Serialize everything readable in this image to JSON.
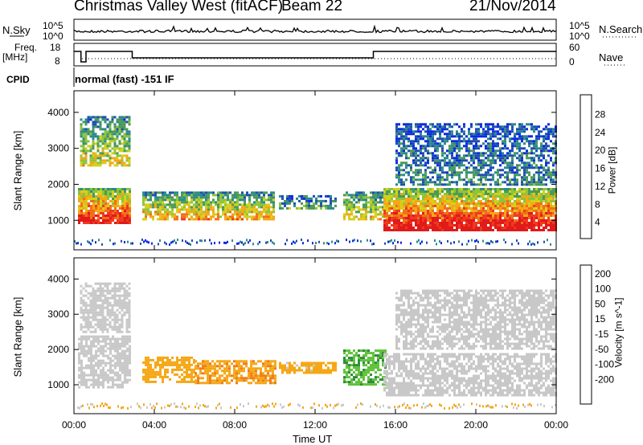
{
  "header": {
    "station": "Christmas Valley West (fitACF)",
    "beam": "Beam 22",
    "date": "21/Nov/2014"
  },
  "top_panels": {
    "nsky_label": "N.Sky",
    "nsearch_label": "N.Search",
    "nsky_ticks": [
      "10^5",
      "10^0"
    ],
    "nsearch_ticks": [
      "10^5",
      "10^0"
    ],
    "freq_label": "Freq.",
    "freq_unit": "[MHz]",
    "freq_ticks": [
      "18",
      "8"
    ],
    "nave_label": "Nave",
    "nave_ticks": [
      "60",
      "0"
    ],
    "cpid_label": "CPID",
    "cpid_text": "normal (fast) -151 IF"
  },
  "chart_data": [
    {
      "type": "heatmap",
      "title": "",
      "xlabel": "Time UT",
      "ylabel": "Slant Range [km]",
      "x_ticks": [
        "00:00",
        "04:00",
        "08:00",
        "12:00",
        "16:00",
        "20:00",
        "00:00"
      ],
      "y_ticks": [
        1000,
        2000,
        3000,
        4000
      ],
      "ylim": [
        180,
        4600
      ],
      "colorbar": {
        "label": "Power [dB]",
        "ticks": [
          "4",
          "8",
          "12",
          "16",
          "20",
          "24",
          "28"
        ],
        "colors": [
          "#0a2be0",
          "#1f4fb0",
          "#2c8a8a",
          "#4d9a55",
          "#8cc43b",
          "#d6d01a",
          "#f5a716",
          "#f0701a",
          "#ee3a1f",
          "#e11a1a"
        ]
      },
      "regions": [
        {
          "t": [
            0.2,
            2.8
          ],
          "r": [
            900,
            1900
          ],
          "level": 0.9
        },
        {
          "t": [
            0.3,
            2.8
          ],
          "r": [
            2500,
            3900
          ],
          "level": 0.5
        },
        {
          "t": [
            3.4,
            10.0
          ],
          "r": [
            1050,
            1800
          ],
          "level": 0.6
        },
        {
          "t": [
            10.2,
            13.0
          ],
          "r": [
            1350,
            1700
          ],
          "level": 0.3
        },
        {
          "t": [
            13.4,
            15.5
          ],
          "r": [
            1000,
            1800
          ],
          "level": 0.55
        },
        {
          "t": [
            15.4,
            24.0
          ],
          "r": [
            700,
            1900
          ],
          "level": 0.95
        },
        {
          "t": [
            16.0,
            24.0
          ],
          "r": [
            2000,
            3700
          ],
          "level": 0.2
        }
      ]
    },
    {
      "type": "heatmap",
      "title": "",
      "xlabel": "Time UT",
      "ylabel": "Slant Range [km]",
      "x_ticks": [
        "00:00",
        "04:00",
        "08:00",
        "12:00",
        "16:00",
        "20:00",
        "00:00"
      ],
      "y_ticks": [
        1000,
        2000,
        3000,
        4000
      ],
      "ylim": [
        180,
        4600
      ],
      "colorbar": {
        "label": "Velocity [m s^-1]",
        "ticks": [
          "200",
          "100",
          "50",
          "15",
          "-15",
          "-50",
          "-100",
          "-200"
        ],
        "colors": [
          "#1a2fb8",
          "#2a5fd0",
          "#2e8a3a",
          "#5ec23a",
          "#c8c8c8",
          "#c8c8c8",
          "#f5a716",
          "#f07a1a",
          "#ee3a1f",
          "#e11a1a"
        ]
      },
      "regions": [
        {
          "t": [
            0.2,
            2.8
          ],
          "r": [
            900,
            2400
          ],
          "value": 0
        },
        {
          "t": [
            0.3,
            2.8
          ],
          "r": [
            2500,
            3900
          ],
          "value": 0
        },
        {
          "t": [
            3.4,
            6.0
          ],
          "r": [
            1100,
            1800
          ],
          "value": -60
        },
        {
          "t": [
            6.0,
            10.0
          ],
          "r": [
            1050,
            1700
          ],
          "value": -70
        },
        {
          "t": [
            10.2,
            13.0
          ],
          "r": [
            1350,
            1650
          ],
          "value": -40
        },
        {
          "t": [
            13.4,
            15.5
          ],
          "r": [
            1000,
            2000
          ],
          "value": 60
        },
        {
          "t": [
            15.4,
            24.0
          ],
          "r": [
            700,
            1900
          ],
          "value": 0
        },
        {
          "t": [
            16.0,
            24.0
          ],
          "r": [
            2000,
            3700
          ],
          "value": 0
        }
      ]
    }
  ]
}
